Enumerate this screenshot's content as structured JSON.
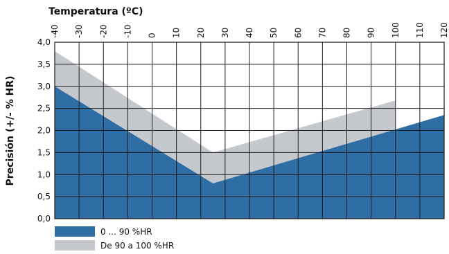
{
  "chart_data": {
    "type": "area",
    "title": "",
    "xlabel": "Temperatura (ºC)",
    "ylabel": "Precisión (+/- % HR)",
    "xlim": [
      -40,
      120
    ],
    "ylim": [
      0,
      4
    ],
    "x_ticks": [
      -40,
      -30,
      -20,
      -10,
      0,
      10,
      20,
      30,
      40,
      50,
      60,
      70,
      80,
      90,
      100,
      110,
      120
    ],
    "x_tick_labels": [
      "-40",
      "-30",
      "-20",
      "-10",
      "0",
      "10",
      "20",
      "30",
      "40",
      "50",
      "60",
      "70",
      "80",
      "90",
      "100",
      "110",
      "120"
    ],
    "y_ticks": [
      0,
      0.5,
      1,
      1.5,
      2,
      2.5,
      3,
      3.5,
      4
    ],
    "y_tick_labels": [
      "0,0",
      "0,5",
      "1,0",
      "1,5",
      "2,0",
      "2,5",
      "3,0",
      "3,5",
      "4,0"
    ],
    "grid": true,
    "legend_position": "bottom-left",
    "series": [
      {
        "name": "0 ... 90 %HR",
        "color": "#2f6ea5",
        "x": [
          -40,
          25,
          120
        ],
        "y": [
          3.0,
          0.8,
          2.35
        ]
      },
      {
        "name": "De 90 a 100 %HR",
        "color": "#c5c8cd",
        "x": [
          -40,
          25,
          100,
          100
        ],
        "y": [
          3.8,
          1.5,
          2.68,
          2.0
        ]
      }
    ]
  }
}
